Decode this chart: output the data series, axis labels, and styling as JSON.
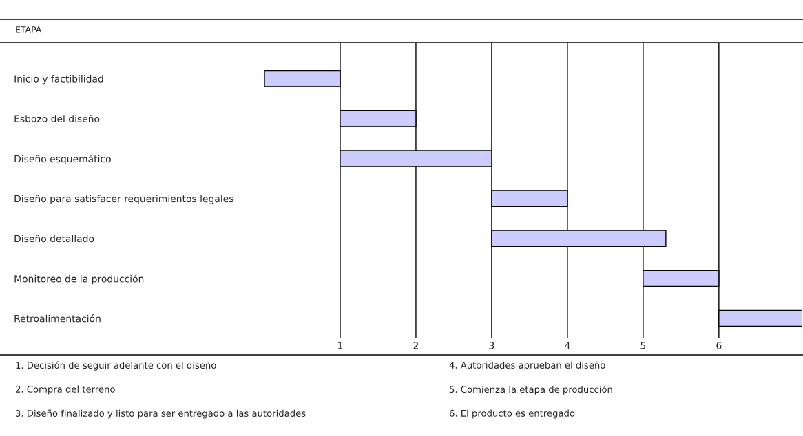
{
  "chart_data": {
    "type": "bar",
    "orientation": "horizontal",
    "ylabel": "ETAPA",
    "categories": [
      "Inicio y factibilidad",
      "Esbozo del diseño",
      "Diseño esquemático",
      "Diseño para satisfacer requerimientos legales",
      "Diseño detallado",
      "Monitoreo de la producción",
      "Retroalimentación"
    ],
    "base": [
      0,
      1,
      1,
      3,
      3,
      5,
      6
    ],
    "values": [
      1,
      1,
      2,
      1,
      2.3,
      1,
      1.1
    ],
    "color": "#ccccff",
    "xlim": [
      0,
      7.1
    ],
    "xticks": [
      1,
      2,
      3,
      4,
      5,
      6
    ],
    "grid": "x",
    "annotations": [
      "1. Decisión de seguir adelante con el diseño",
      "2. Compra del terreno",
      "3. Diseño finalizado y listo para ser entregado a las autoridades",
      "4. Autoridades aprueban el diseño",
      "5. Comienza la etapa de producción",
      "6. El producto es entregado"
    ]
  }
}
